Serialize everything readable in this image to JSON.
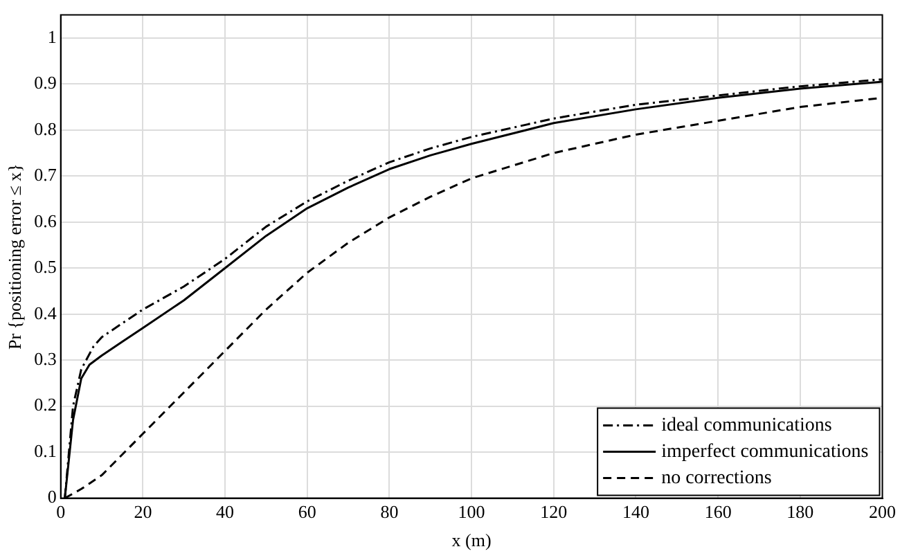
{
  "chart_data": {
    "type": "line",
    "xlabel": "x (m)",
    "ylabel": "Pr {positioning error ≤ x}",
    "xlim": [
      0,
      200
    ],
    "xticks": [
      0,
      20,
      40,
      60,
      80,
      100,
      120,
      140,
      160,
      180,
      200
    ],
    "ylim": [
      0,
      1.05
    ],
    "yticks": [
      0,
      0.1,
      0.2,
      0.3,
      0.4,
      0.5,
      0.6,
      0.7,
      0.8,
      0.9,
      1
    ],
    "grid": true,
    "legend": "bottom right",
    "marker": "none",
    "series": [
      {
        "name": "ideal communications",
        "color": "#000000",
        "line_style": "dashdot",
        "x": [
          1,
          2,
          3,
          5,
          8,
          10,
          15,
          20,
          30,
          40,
          50,
          60,
          70,
          80,
          90,
          100,
          120,
          140,
          160,
          180,
          200
        ],
        "values": [
          0,
          0.1,
          0.2,
          0.28,
          0.33,
          0.35,
          0.38,
          0.41,
          0.46,
          0.52,
          0.59,
          0.645,
          0.69,
          0.73,
          0.76,
          0.785,
          0.825,
          0.855,
          0.875,
          0.895,
          0.91
        ]
      },
      {
        "name": "imperfect communications",
        "color": "#000000",
        "line_style": "solid",
        "x": [
          1,
          3,
          5,
          7,
          10,
          15,
          20,
          30,
          40,
          50,
          60,
          70,
          80,
          90,
          100,
          120,
          140,
          160,
          180,
          200
        ],
        "values": [
          0,
          0.17,
          0.26,
          0.29,
          0.31,
          0.34,
          0.37,
          0.43,
          0.5,
          0.57,
          0.63,
          0.675,
          0.715,
          0.745,
          0.77,
          0.815,
          0.845,
          0.87,
          0.89,
          0.905
        ]
      },
      {
        "name": "no corrections",
        "color": "#000000",
        "line_style": "dashed",
        "x": [
          1,
          5,
          10,
          20,
          30,
          40,
          50,
          60,
          70,
          80,
          90,
          100,
          120,
          140,
          160,
          180,
          200
        ],
        "values": [
          0,
          0.02,
          0.05,
          0.14,
          0.23,
          0.32,
          0.41,
          0.49,
          0.555,
          0.61,
          0.655,
          0.695,
          0.75,
          0.79,
          0.82,
          0.85,
          0.87
        ]
      }
    ]
  }
}
